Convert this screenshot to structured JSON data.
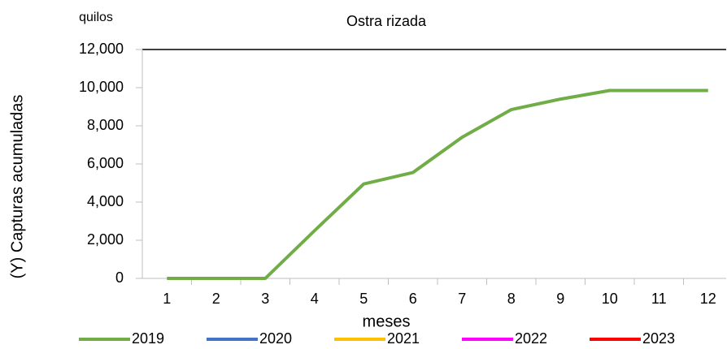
{
  "chart_data": {
    "type": "line",
    "title": "Ostra rizada",
    "unit_label": "quilos",
    "y_label": "(Y) Capturas acumuladas",
    "x_label": "meses",
    "categories": [
      "1",
      "2",
      "3",
      "4",
      "5",
      "6",
      "7",
      "8",
      "9",
      "10",
      "11",
      "12"
    ],
    "series": [
      {
        "name": "2019",
        "color": "#70ad47",
        "values": [
          0,
          0,
          0,
          2500,
          4950,
          5550,
          7400,
          8850,
          9400,
          9850,
          9850,
          9850
        ]
      },
      {
        "name": "2020",
        "color": "#4472c4",
        "values": [
          null,
          null,
          null,
          null,
          null,
          null,
          null,
          null,
          null,
          null,
          null,
          null
        ]
      },
      {
        "name": "2021",
        "color": "#ffc000",
        "values": [
          null,
          null,
          null,
          null,
          null,
          null,
          null,
          null,
          null,
          null,
          null,
          null
        ]
      },
      {
        "name": "2022",
        "color": "#ff00ff",
        "values": [
          null,
          null,
          null,
          null,
          null,
          null,
          null,
          null,
          null,
          null,
          null,
          null
        ]
      },
      {
        "name": "2023",
        "color": "#ff0000",
        "values": [
          null,
          null,
          null,
          null,
          null,
          null,
          null,
          null,
          null,
          null,
          null,
          null
        ]
      }
    ],
    "ylim": [
      0,
      12000
    ],
    "yticks": [
      0,
      {
        "value": 2000,
        "label": "2,000"
      },
      {
        "value": 4000,
        "label": "4,000"
      },
      {
        "value": 6000,
        "label": "6,000"
      },
      {
        "value": 8000,
        "label": "8,000"
      },
      {
        "value": 10000,
        "label": "10,000"
      },
      {
        "value": 12000,
        "label": "12,000"
      }
    ],
    "legend": "bottom"
  }
}
